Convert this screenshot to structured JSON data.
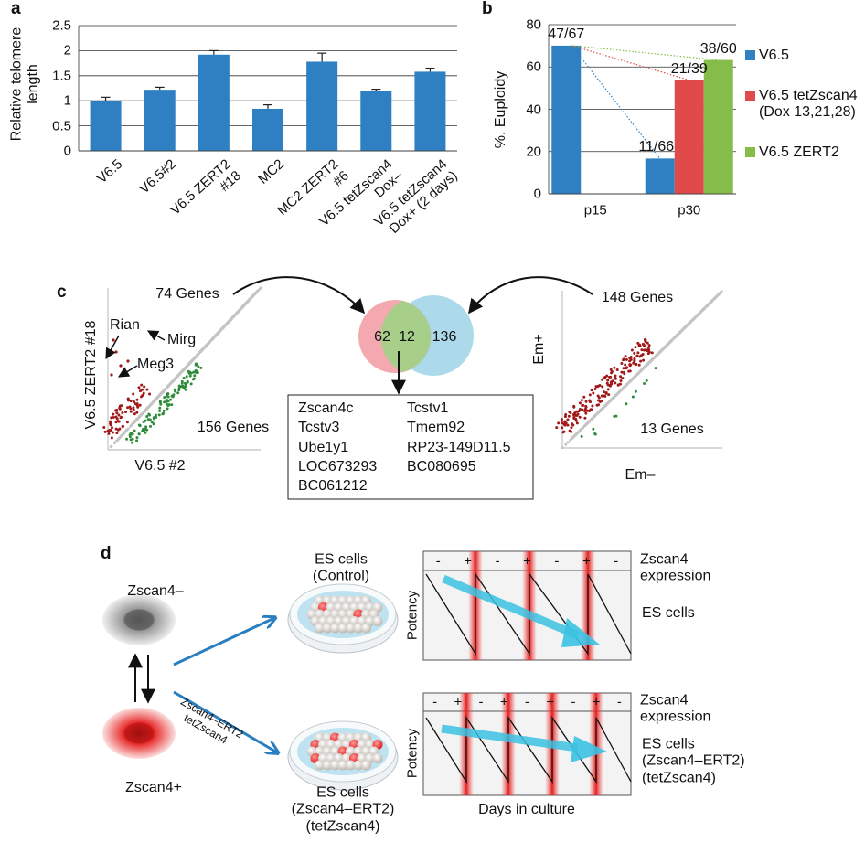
{
  "chart_data": [
    {
      "type": "bar",
      "panel_label": "a",
      "y_label": "Relative telomere\nlength",
      "categories": [
        "V6.5",
        "V6.5#2",
        "V6.5 ZERT2\n#18",
        "MC2",
        "MC2 ZERT2\n#6",
        "V6.5 tetZscan4\nDox–",
        "V6.5 tetZscan4\nDox+ (2 days)"
      ],
      "values": [
        1.0,
        1.22,
        1.92,
        0.84,
        1.78,
        1.2,
        1.58
      ],
      "errors": [
        0.07,
        0.05,
        0.08,
        0.08,
        0.17,
        0.03,
        0.07
      ],
      "color": "#2e80c2",
      "ylim": [
        0,
        2.5
      ],
      "yticks": [
        0,
        0.5,
        1,
        1.5,
        2,
        2.5
      ],
      "grid": true
    },
    {
      "type": "bar",
      "panel_label": "b",
      "y_label": "%. Euploidy",
      "categories": [
        "p15",
        "p30"
      ],
      "series": [
        {
          "name": "V6.5",
          "color": "#2e80c2",
          "values": [
            70.1,
            16.7
          ],
          "value_labels": [
            "47/67",
            "11/66"
          ]
        },
        {
          "name": "V6.5 tetZscan4\n(Dox 13,21,28)",
          "color": "#e04a4a",
          "values": [
            null,
            53.8
          ],
          "value_labels": [
            null,
            "21/39"
          ]
        },
        {
          "name": "V6.5 ZERT2",
          "color": "#86bd4a",
          "values": [
            null,
            63.3
          ],
          "value_labels": [
            null,
            "38/60"
          ]
        }
      ],
      "ylim": [
        0,
        80
      ],
      "yticks": [
        0,
        20,
        40,
        60,
        80
      ],
      "grid": true,
      "legend": "right"
    }
  ],
  "panel_c": {
    "label": "c",
    "left_plot": {
      "top_count": "74 Genes",
      "bottom_count": "156 Genes",
      "x_label": "V6.5 #2",
      "y_label": "V6.5 ZERT2 #18",
      "annotations": [
        "Rian",
        "Mirg",
        "Meg3"
      ]
    },
    "right_plot": {
      "top_count": "148 Genes",
      "bottom_count": "13 Genes",
      "x_label": "Em–",
      "y_label": "Em+"
    },
    "venn": {
      "left": 62,
      "overlap": 12,
      "right": 136
    },
    "gene_columns": [
      [
        "Zscan4c",
        "Tcstv3",
        "Ube1y1",
        "LOC673293",
        "BC061212"
      ],
      [
        "Tcstv1",
        "Tmem92",
        "RP23-149D11.5",
        "BC080695"
      ]
    ]
  },
  "panel_d": {
    "label": "d",
    "state_neg": "Zscan4–",
    "state_pos": "Zscan4+",
    "induction": "Zscan4–ERT2\ntetZscan4",
    "dish_control": "ES cells\n(Control)",
    "dish_induced": "ES cells\n(Zscan4–ERT2)\n(tetZscan4)",
    "top_graph": {
      "signs": [
        "-",
        "+",
        "-",
        "+",
        "-",
        "+",
        "-"
      ],
      "row_label": "Zscan4\nexpression",
      "y_label": "Potency",
      "outcome": "ES cells"
    },
    "bottom_graph": {
      "signs": [
        "-",
        "+",
        "-",
        "+",
        "-",
        "+",
        "-",
        "+",
        "-"
      ],
      "row_label": "Zscan4\nexpression",
      "y_label": "Potency",
      "outcome": "ES cells\n(Zscan4–ERT2)\n(tetZscan4)",
      "x_label": "Days in culture"
    }
  }
}
